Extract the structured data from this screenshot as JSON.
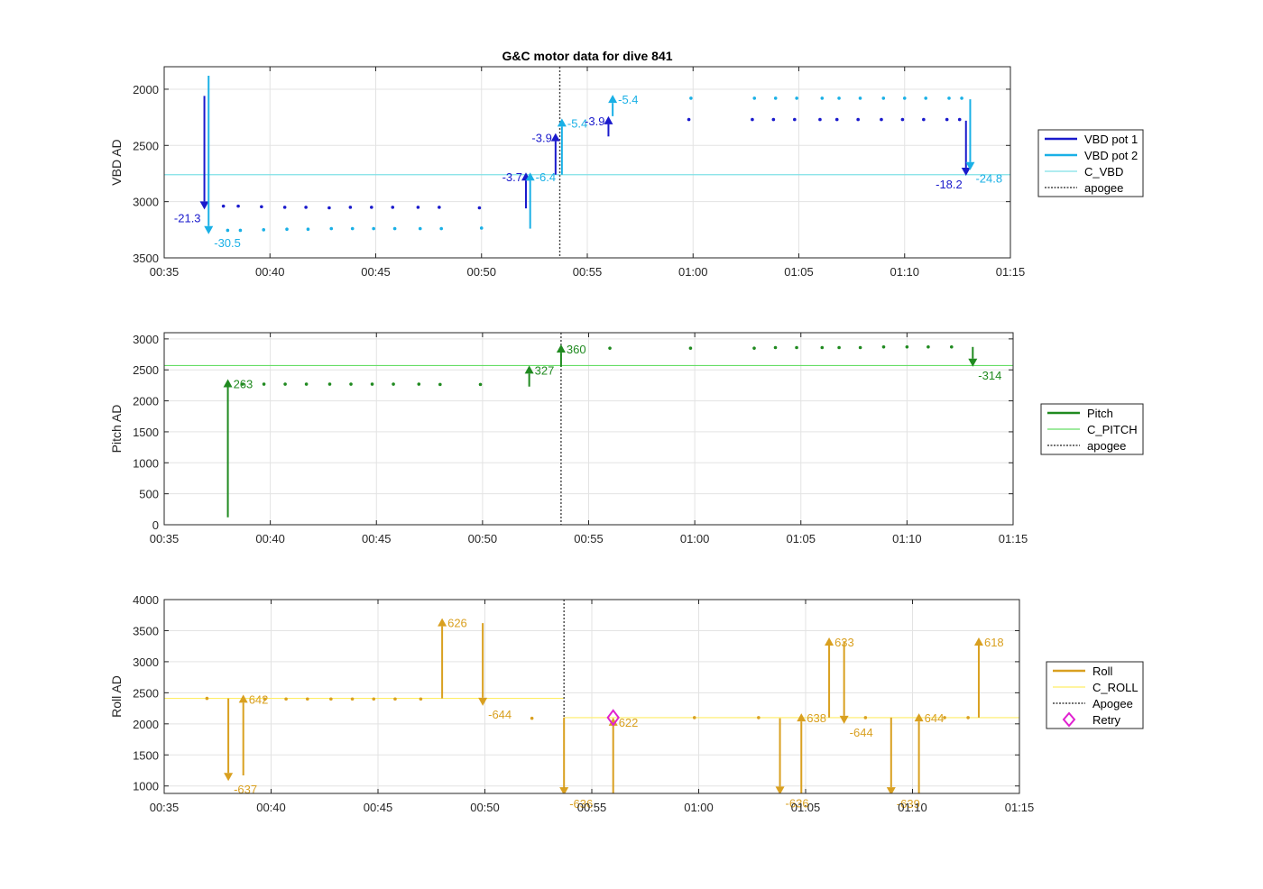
{
  "figure": {
    "title": "G&C motor data for dive 841"
  },
  "chart_data": [
    {
      "type": "scatter",
      "ylabel": "VBD AD",
      "ylim": [
        3500,
        1800
      ],
      "yreverse": true,
      "yticks": [
        "2000",
        "2500",
        "3000",
        "3500"
      ],
      "ytick_values": [
        2000,
        2500,
        3000,
        3500
      ],
      "xlim": [
        35,
        75
      ],
      "xticks": [
        "00:35",
        "00:40",
        "00:45",
        "00:50",
        "00:55",
        "01:00",
        "01:05",
        "01:10",
        "01:15"
      ],
      "xtick_values": [
        35,
        40,
        45,
        50,
        55,
        60,
        65,
        70,
        75
      ],
      "grid": true,
      "legend_position": "right",
      "legend": [
        {
          "label": "VBD pot 1",
          "style": "thick",
          "color": "#1a1acc"
        },
        {
          "label": "VBD pot 2",
          "style": "thick",
          "color": "#1ab0e6"
        },
        {
          "label": "C_VBD",
          "style": "thin",
          "color": "#7fe0e6"
        },
        {
          "label": "apogee",
          "style": "dotted",
          "color": "#444444"
        }
      ],
      "reference_lines": [
        {
          "y": 2760,
          "color": "#7fe0e6"
        }
      ],
      "apogee_x": 53.7,
      "series": [
        {
          "name": "VBD pot 1",
          "color": "#1a1acc",
          "x": [
            37.8,
            38.5,
            39.6,
            40.7,
            41.7,
            42.8,
            43.8,
            44.8,
            45.8,
            47.0,
            48.0,
            49.9,
            59.8,
            62.8,
            63.8,
            64.8,
            66.0,
            66.8,
            67.8,
            68.9,
            69.9,
            70.9,
            72.0,
            72.6
          ],
          "y": [
            3040,
            3040,
            3045,
            3050,
            3050,
            3055,
            3050,
            3050,
            3050,
            3050,
            3050,
            3055,
            2270,
            2270,
            2270,
            2270,
            2270,
            2270,
            2270,
            2270,
            2270,
            2270,
            2270,
            2270
          ]
        },
        {
          "name": "VBD pot 2",
          "color": "#1ab0e6",
          "x": [
            38.0,
            38.6,
            39.7,
            40.8,
            41.8,
            42.9,
            43.9,
            44.9,
            45.9,
            47.1,
            48.1,
            50.0,
            59.9,
            62.9,
            63.9,
            64.9,
            66.1,
            66.9,
            67.9,
            69.0,
            70.0,
            71.0,
            72.1,
            72.7
          ],
          "y": [
            3255,
            3255,
            3250,
            3245,
            3245,
            3240,
            3240,
            3240,
            3240,
            3240,
            3240,
            3235,
            2080,
            2080,
            2080,
            2080,
            2080,
            2080,
            2080,
            2080,
            2080,
            2080,
            2080,
            2080
          ]
        }
      ],
      "arrows": [
        {
          "x": 36.9,
          "y0": 2060,
          "y1": 3070,
          "label": "-21.3",
          "color": "#1a1acc",
          "label_side": "left"
        },
        {
          "x": 37.1,
          "y0": 1880,
          "y1": 3290,
          "label": "-30.5",
          "color": "#1ab0e6",
          "label_side": "right"
        },
        {
          "x": 52.1,
          "y0": 3060,
          "y1": 2740,
          "label": "-3.7",
          "color": "#1a1acc",
          "label_side": "left"
        },
        {
          "x": 52.3,
          "y0": 3240,
          "y1": 2740,
          "label": "-6.4",
          "color": "#1ab0e6",
          "label_side": "right"
        },
        {
          "x": 53.5,
          "y0": 2760,
          "y1": 2390,
          "label": "-3.9",
          "color": "#1a1acc",
          "label_side": "left"
        },
        {
          "x": 53.8,
          "y0": 2760,
          "y1": 2260,
          "label": "-5.4",
          "color": "#1ab0e6",
          "label_side": "right"
        },
        {
          "x": 56.0,
          "y0": 2420,
          "y1": 2240,
          "label": "-3.9",
          "color": "#1a1acc",
          "label_side": "left"
        },
        {
          "x": 56.2,
          "y0": 2240,
          "y1": 2050,
          "label": "-5.4",
          "color": "#1ab0e6",
          "label_side": "right"
        },
        {
          "x": 72.9,
          "y0": 2280,
          "y1": 2770,
          "label": "-18.2",
          "color": "#1a1acc",
          "label_side": "left"
        },
        {
          "x": 73.1,
          "y0": 2090,
          "y1": 2720,
          "label": "-24.8",
          "color": "#1ab0e6",
          "label_side": "right"
        }
      ]
    },
    {
      "type": "scatter",
      "ylabel": "Pitch AD",
      "ylim": [
        0,
        3100
      ],
      "yreverse": false,
      "yticks": [
        "0",
        "500",
        "1000",
        "1500",
        "2000",
        "2500",
        "3000"
      ],
      "ytick_values": [
        0,
        500,
        1000,
        1500,
        2000,
        2500,
        3000
      ],
      "xlim": [
        35,
        75
      ],
      "xticks": [
        "00:35",
        "00:40",
        "00:45",
        "00:50",
        "00:55",
        "01:00",
        "01:05",
        "01:10",
        "01:15"
      ],
      "xtick_values": [
        35,
        40,
        45,
        50,
        55,
        60,
        65,
        70,
        75
      ],
      "grid": true,
      "legend_position": "right",
      "legend": [
        {
          "label": "Pitch",
          "style": "thick",
          "color": "#208a20"
        },
        {
          "label": "C_PITCH",
          "style": "thin",
          "color": "#66dd66"
        },
        {
          "label": "apogee",
          "style": "dotted",
          "color": "#444444"
        }
      ],
      "reference_lines": [
        {
          "y": 2570,
          "color": "#66dd66"
        }
      ],
      "apogee_x": 53.7,
      "series": [
        {
          "name": "Pitch",
          "color": "#208a20",
          "x": [
            38.7,
            39.7,
            40.7,
            41.7,
            42.8,
            43.8,
            44.8,
            45.8,
            47.0,
            48.0,
            49.9,
            56.0,
            59.8,
            62.8,
            63.8,
            64.8,
            66.0,
            66.8,
            67.8,
            68.9,
            70.0,
            71.0,
            72.1
          ],
          "y": [
            2270,
            2270,
            2270,
            2270,
            2270,
            2270,
            2270,
            2270,
            2270,
            2265,
            2265,
            2850,
            2850,
            2850,
            2860,
            2860,
            2860,
            2860,
            2860,
            2870,
            2870,
            2870,
            2870
          ]
        }
      ],
      "arrows": [
        {
          "x": 38.0,
          "y0": 120,
          "y1": 2350,
          "label": "263",
          "color": "#208a20",
          "label_side": "right"
        },
        {
          "x": 52.2,
          "y0": 2230,
          "y1": 2570,
          "label": "327",
          "color": "#208a20",
          "label_side": "right"
        },
        {
          "x": 53.7,
          "y0": 2550,
          "y1": 2910,
          "label": "360",
          "color": "#208a20",
          "label_side": "right"
        },
        {
          "x": 73.1,
          "y0": 2870,
          "y1": 2550,
          "label": "-314",
          "color": "#208a20",
          "label_side": "right"
        }
      ]
    },
    {
      "type": "scatter",
      "ylabel": "Roll AD",
      "ylim": [
        880,
        4000
      ],
      "yreverse": false,
      "yticks": [
        "1000",
        "1500",
        "2000",
        "2500",
        "3000",
        "3500",
        "4000"
      ],
      "ytick_values": [
        1000,
        1500,
        2000,
        2500,
        3000,
        3500,
        4000
      ],
      "xlim": [
        35,
        75
      ],
      "xticks": [
        "00:35",
        "00:40",
        "00:45",
        "00:50",
        "00:55",
        "01:00",
        "01:05",
        "01:10",
        "01:15"
      ],
      "xtick_values": [
        35,
        40,
        45,
        50,
        55,
        60,
        65,
        70,
        75
      ],
      "grid": true,
      "legend_position": "right",
      "legend": [
        {
          "label": "Roll",
          "style": "thick",
          "color": "#d9a020"
        },
        {
          "label": "C_ROLL",
          "style": "thin",
          "color": "#ffee66"
        },
        {
          "label": "Apogee",
          "style": "dotted",
          "color": "#444444"
        },
        {
          "label": "Retry",
          "style": "diamond",
          "color": "#e020d0"
        }
      ],
      "reference_lines": [
        {
          "y": 2410,
          "x0": 35,
          "x1": 53.7,
          "color": "#ffee66"
        },
        {
          "y": 2100,
          "x0": 53.7,
          "x1": 75,
          "color": "#ffee66"
        }
      ],
      "apogee_x": 53.7,
      "series": [
        {
          "name": "Roll",
          "color": "#d9a020",
          "x": [
            37.0,
            39.7,
            40.7,
            41.7,
            42.8,
            43.8,
            44.8,
            45.8,
            47.0,
            52.2,
            59.8,
            62.8,
            67.8,
            71.5,
            72.6
          ],
          "y": [
            2410,
            2400,
            2400,
            2400,
            2400,
            2400,
            2400,
            2400,
            2400,
            2090,
            2100,
            2100,
            2100,
            2100,
            2100
          ]
        }
      ],
      "arrows": [
        {
          "x": 38.0,
          "y0": 2410,
          "y1": 1080,
          "label": "-637",
          "color": "#d9a020",
          "label_side": "right"
        },
        {
          "x": 38.7,
          "y0": 1170,
          "y1": 2470,
          "label": "642",
          "color": "#d9a020",
          "label_side": "right"
        },
        {
          "x": 48.0,
          "y0": 2410,
          "y1": 3700,
          "label": "626",
          "color": "#d9a020",
          "label_side": "right"
        },
        {
          "x": 49.9,
          "y0": 3620,
          "y1": 2290,
          "label": "-644",
          "color": "#d9a020",
          "label_side": "right"
        },
        {
          "x": 53.7,
          "y0": 2100,
          "y1": 850,
          "label": "-636",
          "color": "#d9a020",
          "label_side": "right"
        },
        {
          "x": 56.0,
          "y0": 850,
          "y1": 2100,
          "label": "622",
          "color": "#d9a020",
          "label_side": "right"
        },
        {
          "x": 63.8,
          "y0": 2090,
          "y1": 860,
          "label": "-636",
          "color": "#d9a020",
          "label_side": "right"
        },
        {
          "x": 64.8,
          "y0": 880,
          "y1": 2170,
          "label": "638",
          "color": "#d9a020",
          "label_side": "right"
        },
        {
          "x": 66.1,
          "y0": 2100,
          "y1": 3390,
          "label": "633",
          "color": "#d9a020",
          "label_side": "right"
        },
        {
          "x": 66.8,
          "y0": 3330,
          "y1": 2000,
          "label": "-644",
          "color": "#d9a020",
          "label_side": "right"
        },
        {
          "x": 69.0,
          "y0": 2100,
          "y1": 850,
          "label": "-639",
          "color": "#d9a020",
          "label_side": "right"
        },
        {
          "x": 70.3,
          "y0": 880,
          "y1": 2170,
          "label": "644",
          "color": "#d9a020",
          "label_side": "right"
        },
        {
          "x": 73.1,
          "y0": 2100,
          "y1": 3390,
          "label": "618",
          "color": "#d9a020",
          "label_side": "right"
        }
      ],
      "markers": [
        {
          "x": 56.0,
          "y": 2100,
          "shape": "diamond",
          "color": "#e020d0"
        }
      ]
    }
  ]
}
